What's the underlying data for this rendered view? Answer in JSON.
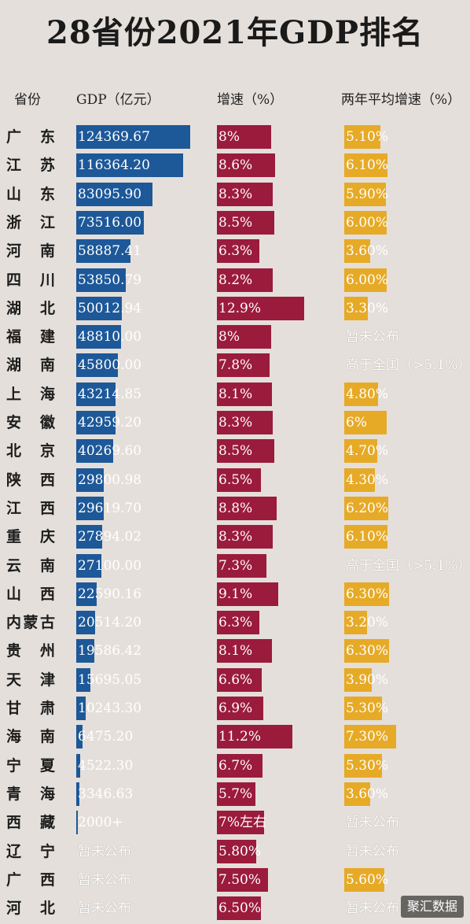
{
  "chart_data": {
    "type": "table",
    "title": "28省份2021年GDP排名",
    "columns": [
      "省份",
      "GDP（亿元）",
      "增速（%）",
      "两年平均增速（%）"
    ],
    "gdp_max": 124369.67,
    "growth_max": 12.9,
    "avg_max": 7.3,
    "rows": [
      {
        "province": "广  东",
        "gdp": 124369.67,
        "gdp_label": "124369.67",
        "growth": 8.0,
        "growth_label": "8%",
        "avg": 5.1,
        "avg_label": "5.10%"
      },
      {
        "province": "江  苏",
        "gdp": 116364.2,
        "gdp_label": "116364.20",
        "growth": 8.6,
        "growth_label": "8.6%",
        "avg": 6.1,
        "avg_label": "6.10%"
      },
      {
        "province": "山  东",
        "gdp": 83095.9,
        "gdp_label": "83095.90",
        "growth": 8.3,
        "growth_label": "8.3%",
        "avg": 5.9,
        "avg_label": "5.90%"
      },
      {
        "province": "浙  江",
        "gdp": 73516.0,
        "gdp_label": "73516.00",
        "growth": 8.5,
        "growth_label": "8.5%",
        "avg": 6.0,
        "avg_label": "6.00%"
      },
      {
        "province": "河  南",
        "gdp": 58887.41,
        "gdp_label": "58887.41",
        "growth": 6.3,
        "growth_label": "6.3%",
        "avg": 3.6,
        "avg_label": "3.60%"
      },
      {
        "province": "四  川",
        "gdp": 53850.79,
        "gdp_label": "53850.79",
        "growth": 8.2,
        "growth_label": "8.2%",
        "avg": 6.0,
        "avg_label": "6.00%"
      },
      {
        "province": "湖  北",
        "gdp": 50012.94,
        "gdp_label": "50012.94",
        "growth": 12.9,
        "growth_label": "12.9%",
        "avg": 3.3,
        "avg_label": "3.30%"
      },
      {
        "province": "福  建",
        "gdp": 48810.0,
        "gdp_label": "48810.00",
        "growth": 8.0,
        "growth_label": "8%",
        "avg": null,
        "avg_label": "暂未公布"
      },
      {
        "province": "湖  南",
        "gdp": 45800.0,
        "gdp_label": "45800.00",
        "growth": 7.8,
        "growth_label": "7.8%",
        "avg": null,
        "avg_label": "高于全国（>5.1%）"
      },
      {
        "province": "上  海",
        "gdp": 43214.85,
        "gdp_label": "43214.85",
        "growth": 8.1,
        "growth_label": "8.1%",
        "avg": 4.8,
        "avg_label": "4.80%"
      },
      {
        "province": "安  徽",
        "gdp": 42959.2,
        "gdp_label": "42959.20",
        "growth": 8.3,
        "growth_label": "8.3%",
        "avg": 6.0,
        "avg_label": "6%"
      },
      {
        "province": "北  京",
        "gdp": 40269.6,
        "gdp_label": "40269.60",
        "growth": 8.5,
        "growth_label": "8.5%",
        "avg": 4.7,
        "avg_label": "4.70%"
      },
      {
        "province": "陕  西",
        "gdp": 29800.98,
        "gdp_label": "29800.98",
        "growth": 6.5,
        "growth_label": "6.5%",
        "avg": 4.3,
        "avg_label": "4.30%"
      },
      {
        "province": "江  西",
        "gdp": 29619.7,
        "gdp_label": "29619.70",
        "growth": 8.8,
        "growth_label": "8.8%",
        "avg": 6.2,
        "avg_label": "6.20%"
      },
      {
        "province": "重  庆",
        "gdp": 27894.02,
        "gdp_label": "27894.02",
        "growth": 8.3,
        "growth_label": "8.3%",
        "avg": 6.1,
        "avg_label": "6.10%"
      },
      {
        "province": "云  南",
        "gdp": 27100.0,
        "gdp_label": "27100.00",
        "growth": 7.3,
        "growth_label": "7.3%",
        "avg": null,
        "avg_label": "高于全国（>5.1%）"
      },
      {
        "province": "山  西",
        "gdp": 22590.16,
        "gdp_label": "22590.16",
        "growth": 9.1,
        "growth_label": "9.1%",
        "avg": 6.3,
        "avg_label": "6.30%"
      },
      {
        "province": "内蒙古",
        "gdp": 20514.2,
        "gdp_label": "20514.20",
        "growth": 6.3,
        "growth_label": "6.3%",
        "avg": 3.2,
        "avg_label": "3.20%"
      },
      {
        "province": "贵  州",
        "gdp": 19586.42,
        "gdp_label": "19586.42",
        "growth": 8.1,
        "growth_label": "8.1%",
        "avg": 6.3,
        "avg_label": "6.30%"
      },
      {
        "province": "天  津",
        "gdp": 15695.05,
        "gdp_label": "15695.05",
        "growth": 6.6,
        "growth_label": "6.6%",
        "avg": 3.9,
        "avg_label": "3.90%"
      },
      {
        "province": "甘  肃",
        "gdp": 10243.3,
        "gdp_label": "10243.30",
        "growth": 6.9,
        "growth_label": "6.9%",
        "avg": 5.3,
        "avg_label": "5.30%"
      },
      {
        "province": "海  南",
        "gdp": 6475.2,
        "gdp_label": "6475.20",
        "growth": 11.2,
        "growth_label": "11.2%",
        "avg": 7.3,
        "avg_label": "7.30%"
      },
      {
        "province": "宁  夏",
        "gdp": 4522.3,
        "gdp_label": "4522.30",
        "growth": 6.7,
        "growth_label": "6.7%",
        "avg": 5.3,
        "avg_label": "5.30%"
      },
      {
        "province": "青  海",
        "gdp": 3346.63,
        "gdp_label": "3346.63",
        "growth": 5.7,
        "growth_label": "5.7%",
        "avg": 3.6,
        "avg_label": "3.60%"
      },
      {
        "province": "西  藏",
        "gdp": 2000,
        "gdp_label": "2000+",
        "growth": 7.0,
        "growth_label": "7%左右",
        "avg": null,
        "avg_label": "暂未公布"
      },
      {
        "province": "辽  宁",
        "gdp": null,
        "gdp_label": "暂未公布",
        "growth": 5.8,
        "growth_label": "5.80%",
        "avg": null,
        "avg_label": "暂未公布"
      },
      {
        "province": "广  西",
        "gdp": null,
        "gdp_label": "暂未公布",
        "growth": 7.5,
        "growth_label": "7.50%",
        "avg": 5.6,
        "avg_label": "5.60%"
      },
      {
        "province": "河  北",
        "gdp": null,
        "gdp_label": "暂未公布",
        "growth": 6.5,
        "growth_label": "6.50%",
        "avg": null,
        "avg_label": "暂未公布"
      }
    ]
  },
  "colors": {
    "gdp_bar": "#1d5899",
    "growth_bar": "#9b1b3c",
    "avg_bar": "#e6aa27",
    "background": "#e4dfda"
  },
  "watermark": "聚汇数据"
}
